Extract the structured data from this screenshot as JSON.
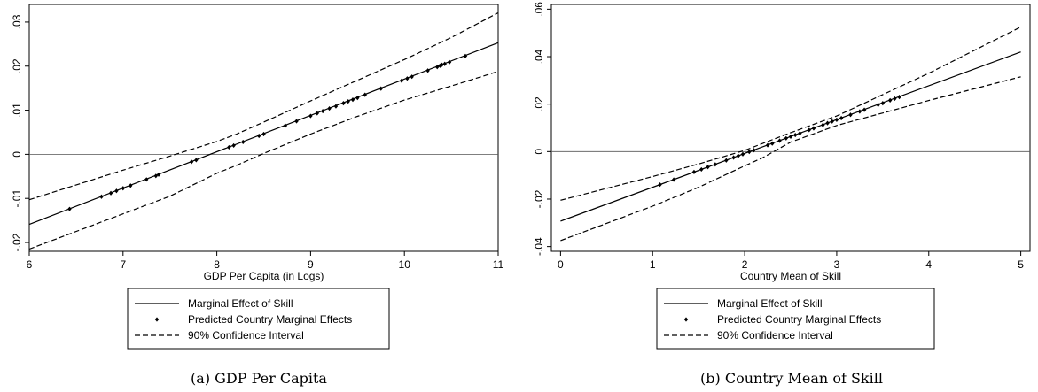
{
  "chart_data": [
    {
      "type": "line",
      "caption": "(a) GDP Per Capita",
      "xlabel": "GDP Per Capita (in Logs)",
      "ylabel": "",
      "xlim": [
        6,
        11
      ],
      "ylim": [
        -0.022,
        0.034
      ],
      "xticks": [
        6,
        7,
        8,
        9,
        10,
        11
      ],
      "xtick_labels": [
        "6",
        "7",
        "8",
        "9",
        "10",
        "11"
      ],
      "yticks": [
        -0.02,
        -0.01,
        0,
        0.01,
        0.02,
        0.03
      ],
      "ytick_labels": [
        "-.02",
        "-.01",
        "0",
        ".01",
        ".02",
        ".03"
      ],
      "grid": false,
      "zero_line": 0,
      "legend_position": "bottom",
      "legend": [
        {
          "label": "Marginal Effect of Skill",
          "style": "solid"
        },
        {
          "label": "Predicted Country Marginal Effects",
          "style": "marker"
        },
        {
          "label": "90% Confidence Interval",
          "style": "dashed"
        }
      ],
      "series": [
        {
          "name": "Marginal Effect of Skill",
          "style": "solid",
          "x": [
            6,
            11
          ],
          "y": [
            -0.0159,
            0.0253
          ]
        },
        {
          "name": "90% Confidence Interval",
          "style": "dashed",
          "x": [
            6,
            7,
            7.5,
            8,
            8.2,
            8.5,
            9,
            9.5,
            10,
            10.5,
            11
          ],
          "y": [
            -0.0103,
            -0.0036,
            -0.0004,
            0.0029,
            0.0045,
            0.0073,
            0.0121,
            0.0168,
            0.0215,
            0.0265,
            0.0321
          ]
        },
        {
          "name": "90% Confidence Interval",
          "style": "dashed",
          "x": [
            6,
            7,
            7.5,
            8,
            8.2,
            8.5,
            9,
            9.5,
            10,
            10.5,
            11
          ],
          "y": [
            -0.0215,
            -0.0135,
            -0.0095,
            -0.0043,
            -0.0026,
            0.0002,
            0.0046,
            0.0086,
            0.0123,
            0.0155,
            0.0188
          ]
        },
        {
          "name": "Predicted Country Marginal Effects",
          "style": "marker",
          "x": [
            6.43,
            6.77,
            6.87,
            6.93,
            7.0,
            7.08,
            7.25,
            7.35,
            7.38,
            7.73,
            7.78,
            8.13,
            8.18,
            8.28,
            8.45,
            8.5,
            8.73,
            8.85,
            9.0,
            9.07,
            9.13,
            9.2,
            9.27,
            9.35,
            9.4,
            9.45,
            9.5,
            9.58,
            9.75,
            9.97,
            10.03,
            10.08,
            10.25,
            10.35,
            10.38,
            10.4,
            10.43,
            10.48,
            10.65
          ],
          "y": [
            -0.0124,
            -0.0096,
            -0.0088,
            -0.0083,
            -0.0077,
            -0.0071,
            -0.0057,
            -0.0049,
            -0.0046,
            -0.0017,
            -0.0013,
            0.0016,
            0.002,
            0.0028,
            0.0042,
            0.0046,
            0.0065,
            0.0075,
            0.0087,
            0.0093,
            0.0098,
            0.0104,
            0.0109,
            0.0116,
            0.012,
            0.0124,
            0.0128,
            0.0135,
            0.0149,
            0.0167,
            0.0172,
            0.0176,
            0.019,
            0.0198,
            0.0201,
            0.0203,
            0.0205,
            0.0209,
            0.0223
          ]
        }
      ]
    },
    {
      "type": "line",
      "caption": "(b) Country Mean of Skill",
      "xlabel": "Country Mean of Skill",
      "ylabel": "",
      "xlim": [
        -0.1,
        5.1
      ],
      "ylim": [
        -0.042,
        0.062
      ],
      "xticks": [
        0,
        1,
        2,
        3,
        4,
        5
      ],
      "xtick_labels": [
        "0",
        "1",
        "2",
        "3",
        "4",
        "5"
      ],
      "yticks": [
        -0.04,
        -0.02,
        0,
        0.02,
        0.04,
        0.06
      ],
      "ytick_labels": [
        "-.04",
        "-.02",
        "0",
        ".02",
        ".04",
        ".06"
      ],
      "grid": false,
      "zero_line": 0,
      "legend_position": "bottom",
      "legend": [
        {
          "label": "Marginal Effect of Skill",
          "style": "solid"
        },
        {
          "label": "Predicted Country Marginal Effects",
          "style": "marker"
        },
        {
          "label": "90% Confidence Interval",
          "style": "dashed"
        }
      ],
      "series": [
        {
          "name": "Marginal Effect of Skill",
          "style": "solid",
          "x": [
            0,
            5
          ],
          "y": [
            -0.0293,
            0.042
          ]
        },
        {
          "name": "90% Confidence Interval",
          "style": "dashed",
          "x": [
            0,
            1,
            1.5,
            2,
            2.2,
            2.5,
            3,
            4,
            5
          ],
          "y": [
            -0.0205,
            -0.0105,
            -0.0052,
            0.0005,
            0.0035,
            0.008,
            0.015,
            0.033,
            0.0525
          ]
        },
        {
          "name": "90% Confidence Interval",
          "style": "dashed",
          "x": [
            0,
            1,
            1.5,
            2,
            2.2,
            2.5,
            3,
            4,
            5
          ],
          "y": [
            -0.0375,
            -0.023,
            -0.015,
            -0.006,
            -0.0025,
            0.004,
            0.011,
            0.0215,
            0.0315
          ]
        },
        {
          "name": "Predicted Country Marginal Effects",
          "style": "marker",
          "x": [
            1.08,
            1.23,
            1.45,
            1.53,
            1.6,
            1.68,
            1.8,
            1.88,
            1.93,
            1.98,
            2.05,
            2.1,
            2.25,
            2.3,
            2.38,
            2.45,
            2.5,
            2.55,
            2.6,
            2.7,
            2.75,
            2.85,
            2.9,
            2.95,
            3.0,
            3.05,
            3.15,
            3.25,
            3.3,
            3.45,
            3.5,
            3.58,
            3.63,
            3.68
          ],
          "y": [
            -0.0139,
            -0.0118,
            -0.0086,
            -0.0075,
            -0.0065,
            -0.0054,
            -0.0037,
            -0.0025,
            -0.0018,
            -0.0011,
            -0.0001,
            0.0006,
            0.0027,
            0.0034,
            0.0046,
            0.0056,
            0.0063,
            0.007,
            0.0077,
            0.0091,
            0.0098,
            0.0112,
            0.012,
            0.0127,
            0.0134,
            0.0141,
            0.0155,
            0.0169,
            0.0176,
            0.0197,
            0.0204,
            0.0216,
            0.0223,
            0.023
          ]
        }
      ]
    }
  ]
}
